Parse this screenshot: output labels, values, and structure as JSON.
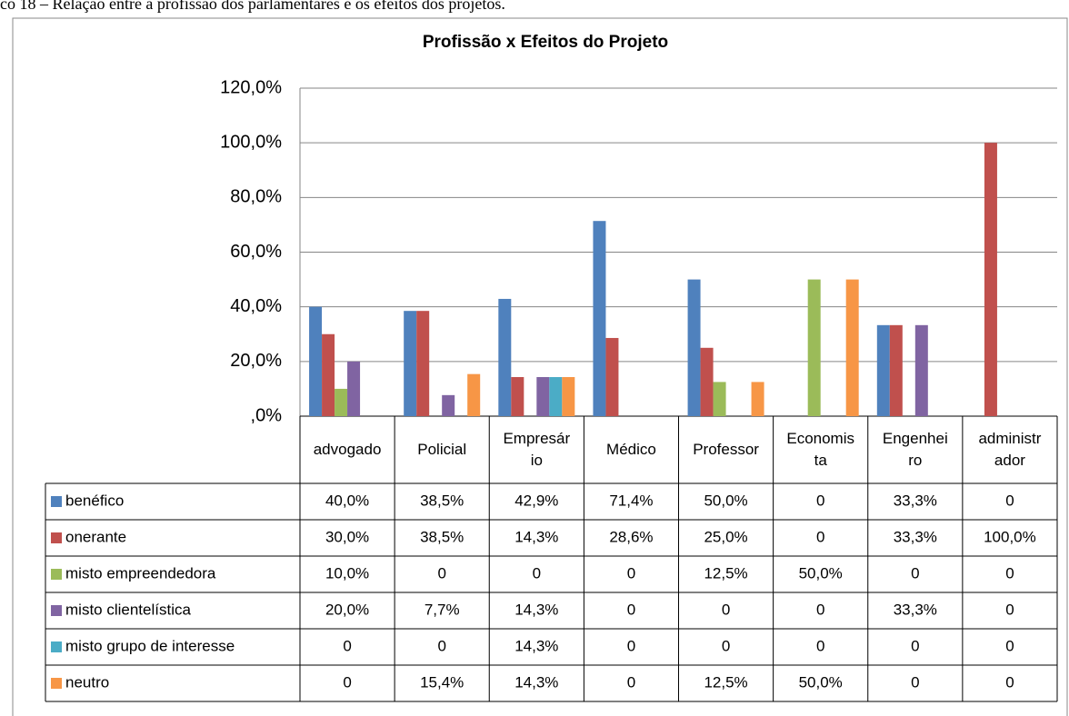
{
  "caption": "co 18 – Relação entre a profissão dos parlamentares e os efeitos dos projetos.",
  "chart_data": {
    "type": "bar",
    "title": "Profissão x Efeitos do Projeto",
    "categories": [
      "advogado",
      "Policial",
      "Empresário",
      "Médico",
      "Professor",
      "Economista",
      "Engenheiro",
      "administrador"
    ],
    "ylim": [
      0,
      120
    ],
    "yticks": [
      {
        "value": 0,
        "label": ",0%"
      },
      {
        "value": 20,
        "label": "20,0%"
      },
      {
        "value": 40,
        "label": "40,0%"
      },
      {
        "value": 60,
        "label": "60,0%"
      },
      {
        "value": 80,
        "label": "80,0%"
      },
      {
        "value": 100,
        "label": "100,0%"
      },
      {
        "value": 120,
        "label": "120,0%"
      }
    ],
    "grid": true,
    "series": [
      {
        "name": "benéfico",
        "color": "#4f81bd",
        "values": [
          40,
          38.5,
          42.9,
          71.4,
          50,
          0,
          33.3,
          0
        ],
        "value_labels": [
          "40,0%",
          "38,5%",
          "42,9%",
          "71,4%",
          "50,0%",
          "0",
          "33,3%",
          "0"
        ]
      },
      {
        "name": "onerante",
        "color": "#c0504d",
        "values": [
          30,
          38.5,
          14.3,
          28.6,
          25,
          0,
          33.3,
          100
        ],
        "value_labels": [
          "30,0%",
          "38,5%",
          "14,3%",
          "28,6%",
          "25,0%",
          "0",
          "33,3%",
          "100,0%"
        ]
      },
      {
        "name": "misto empreendedora",
        "color": "#9bbb59",
        "values": [
          10,
          0,
          0,
          0,
          12.5,
          50,
          0,
          0
        ],
        "value_labels": [
          "10,0%",
          "0",
          "0",
          "0",
          "12,5%",
          "50,0%",
          "0",
          "0"
        ]
      },
      {
        "name": "misto clientelística",
        "color": "#8064a2",
        "values": [
          20,
          7.7,
          14.3,
          0,
          0,
          0,
          33.3,
          0
        ],
        "value_labels": [
          "20,0%",
          "7,7%",
          "14,3%",
          "0",
          "0",
          "0",
          "33,3%",
          "0"
        ]
      },
      {
        "name": "misto grupo de interesse",
        "color": "#4bacc6",
        "values": [
          0,
          0,
          14.3,
          0,
          0,
          0,
          0,
          0
        ],
        "value_labels": [
          "0",
          "0",
          "14,3%",
          "0",
          "0",
          "0",
          "0",
          "0"
        ]
      },
      {
        "name": "neutro",
        "color": "#f79646",
        "values": [
          0,
          15.4,
          14.3,
          0,
          12.5,
          50,
          0,
          0
        ],
        "value_labels": [
          "0",
          "15,4%",
          "14,3%",
          "0",
          "12,5%",
          "50,0%",
          "0",
          "0"
        ]
      }
    ]
  }
}
